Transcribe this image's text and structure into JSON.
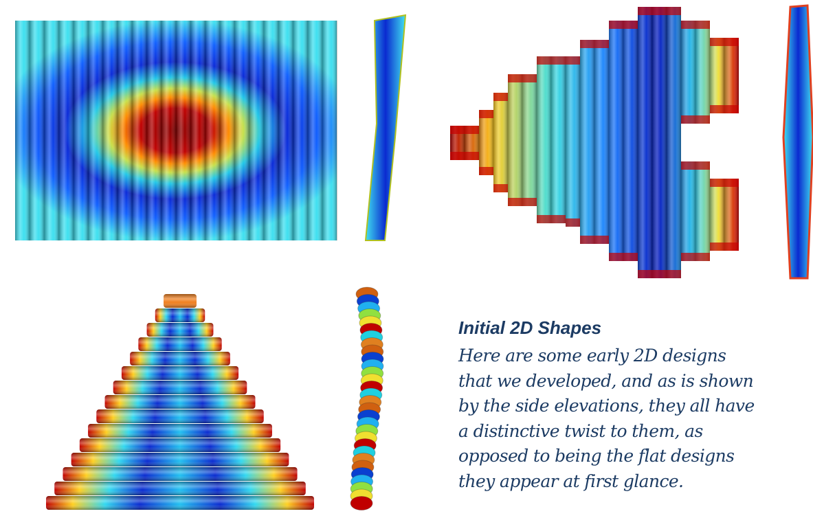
{
  "caption": {
    "heading": "Initial 2D Shapes",
    "lines": [
      "Here are some early 2D designs",
      "that we developed, and as is shown",
      "by the side elevations, they all have",
      "a distinctive twist to them, as",
      "opposed to being the flat designs",
      "they appear at first glance."
    ]
  }
}
